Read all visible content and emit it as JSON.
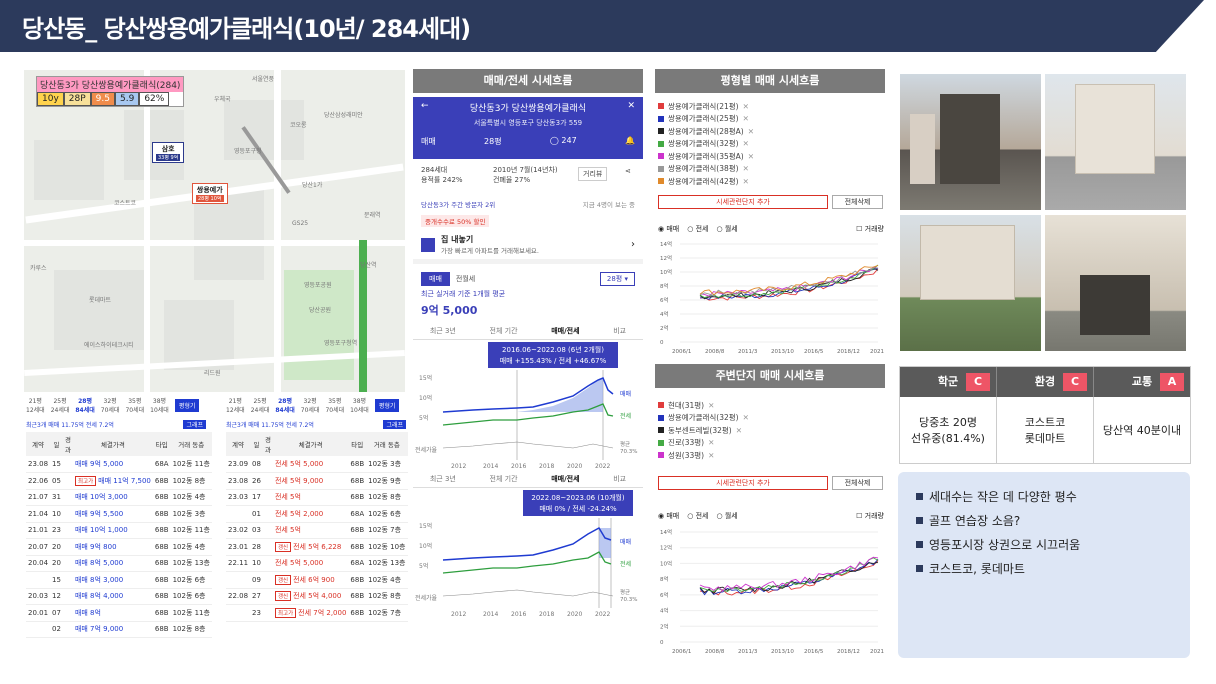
{
  "title": "당산동_ 당산쌍용예가클래식(10년/ 284세대)",
  "map": {
    "badge_title": "당산동3가 당산쌍용예가클래식(284)",
    "badge_cells": [
      "10y",
      "28P",
      "9.5",
      "5.9",
      "62%"
    ],
    "markers": [
      {
        "title": "삼호",
        "sub": "33평 9억"
      },
      {
        "title": "쌍용예가",
        "sub": "28평 10억"
      }
    ],
    "labels": [
      "서울연풍",
      "우체국",
      "당산삼성래미안",
      "코오롱",
      "당산1가",
      "문래역",
      "코스트코",
      "롯데마트",
      "영등포구청",
      "영등포구청역",
      "GS25",
      "카루스",
      "당산공원",
      "리드원",
      "에이스하이테크시티",
      "영등포공원",
      "당산역"
    ]
  },
  "tables": {
    "tabs_a": [
      "21평",
      "25평",
      "28평",
      "32평",
      "35평",
      "38평"
    ],
    "tabs_a_sub": [
      "12세대",
      "24세대",
      "84세대",
      "70세대",
      "70세대",
      "10세대"
    ],
    "tabs_b_sub": [
      "12세대",
      "24세대",
      "84세대",
      "70세대",
      "70세대",
      "10세대"
    ],
    "graph_btn": "평형기",
    "summary": "최근3개 매매 11.75억  전세 7.2억",
    "small_btn": "그래프",
    "headers": [
      "계약",
      "일",
      "경과",
      "체결가격",
      "타입",
      "거래 동층"
    ],
    "left_rows": [
      {
        "d": "23.08",
        "day": "15",
        "price": "매매 9억 5,000",
        "type": "68A",
        "floor": "102동 11층"
      },
      {
        "d": "22.06",
        "day": "05",
        "price": "매매 11억 7,500",
        "type": "68B",
        "floor": "102동 8층",
        "tag": "최고가"
      },
      {
        "d": "21.07",
        "day": "31",
        "price": "매매 10억 3,000",
        "type": "68B",
        "floor": "102동 4층"
      },
      {
        "d": "21.04",
        "day": "10",
        "price": "매매 9억 5,500",
        "type": "68B",
        "floor": "102동 3층"
      },
      {
        "d": "21.01",
        "day": "23",
        "price": "매매 10억 1,000",
        "type": "68B",
        "floor": "102동 11층"
      },
      {
        "d": "20.07",
        "day": "20",
        "price": "매매 9억 800",
        "type": "68B",
        "floor": "102동 4층"
      },
      {
        "d": "20.04",
        "day": "20",
        "price": "매매 8억 5,000",
        "type": "68B",
        "floor": "102동 13층"
      },
      {
        "d": "",
        "day": "15",
        "price": "매매 8억 3,000",
        "type": "68B",
        "floor": "102동 6층"
      },
      {
        "d": "20.03",
        "day": "12",
        "price": "매매 8억 4,000",
        "type": "68B",
        "floor": "102동 6층"
      },
      {
        "d": "20.01",
        "day": "07",
        "price": "매매 8억",
        "type": "68B",
        "floor": "102동 11층"
      },
      {
        "d": "",
        "day": "02",
        "price": "매매 7억 9,000",
        "type": "68B",
        "floor": "102동 8층"
      }
    ],
    "right_rows": [
      {
        "d": "23.09",
        "day": "08",
        "price": "전세 5억 5,000",
        "type": "68B",
        "floor": "102동 3층"
      },
      {
        "d": "23.08",
        "day": "26",
        "price": "전세 5억 9,000",
        "type": "68B",
        "floor": "102동 9층"
      },
      {
        "d": "23.03",
        "day": "17",
        "price": "전세 5억",
        "type": "68B",
        "floor": "102동 8층"
      },
      {
        "d": "",
        "day": "01",
        "price": "전세 5억 2,000",
        "type": "68A",
        "floor": "102동 6층"
      },
      {
        "d": "23.02",
        "day": "03",
        "price": "전세 5억",
        "type": "68B",
        "floor": "102동 7층"
      },
      {
        "d": "23.01",
        "day": "28",
        "price": "전세 5억 6,228",
        "type": "68B",
        "floor": "102동 10층",
        "tag": "갱신"
      },
      {
        "d": "22.11",
        "day": "10",
        "price": "전세 5억 5,000",
        "type": "68A",
        "floor": "102동 13층"
      },
      {
        "d": "",
        "day": "09",
        "price": "전세 6억 900",
        "type": "68B",
        "floor": "102동 4층",
        "tag": "갱신"
      },
      {
        "d": "22.08",
        "day": "27",
        "price": "전세 5억 4,000",
        "type": "68B",
        "floor": "102동 8층",
        "tag": "갱신"
      },
      {
        "d": "",
        "day": "23",
        "price": "전세 7억 2,000",
        "type": "68B",
        "floor": "102동 7층",
        "tag": "최고가"
      }
    ]
  },
  "trend": {
    "header": "매매/전세 시세흐름",
    "app_title": "당산동3가 당산쌍용예가클래식",
    "address": "서울특별시 영등포구 당산동3가 559",
    "deal_type": "매매",
    "size": "28평",
    "comment_count": "247",
    "units": "284세대",
    "ratio": "용적률 242%",
    "built": "2010년 7월(14년차)",
    "coverage": "건폐율 27%",
    "street_view": "거리뷰",
    "visitors": "당산동3가 주간 방문자 2위",
    "now_viewing": "지금 4명이 보는 중",
    "promo": "중개수수료 50% 할인",
    "sell_title": "집 내놓기",
    "sell_sub": "가장 빠르게 아파트를 거래해보세요.",
    "tab_sale": "매매",
    "tab_rent": "전월세",
    "size_select": "28평",
    "avg_label": "최근 실거래 기준 1개월 평균",
    "avg_price": "9억 5,000",
    "period_tabs": [
      "최근 3년",
      "전체 기간",
      "매매/전세",
      "비교"
    ],
    "chart1_tooltip": [
      "2016.06~2022.08 (6년 2개월)",
      "매매 +155.43%  /  전세 +46.67%"
    ],
    "chart2_tooltip": [
      "2022.08~2023.06 (10개월)",
      "매매 0%  /  전세 -24.24%"
    ],
    "y_ticks": [
      "15억",
      "10억",
      "5억"
    ],
    "x_ticks": [
      "2012",
      "2014",
      "2016",
      "2018",
      "2020",
      "2022"
    ],
    "vol_label": "전세가율",
    "line_labels": [
      "매매",
      "전세"
    ],
    "ratio_label": [
      "평균",
      "70.3%"
    ]
  },
  "size_chart": {
    "header": "평형별 매매 시세흐름",
    "series": [
      {
        "name": "쌍용예가클래식(21평)",
        "color": "#e03c3c"
      },
      {
        "name": "쌍용예가클래식(25평)",
        "color": "#2233bb"
      },
      {
        "name": "쌍용예가클래식(28평A)",
        "color": "#222222"
      },
      {
        "name": "쌍용예가클래식(32평)",
        "color": "#44aa44"
      },
      {
        "name": "쌍용예가클래식(35평A)",
        "color": "#cc33cc"
      },
      {
        "name": "쌍용예가클래식(38평)",
        "color": "#999999"
      },
      {
        "name": "쌍용예가클래식(42평)",
        "color": "#e08a2c"
      }
    ],
    "add_btn": "시세관련단지 추가",
    "del_btn": "전체삭제",
    "radios": [
      "매매",
      "전세",
      "월세"
    ],
    "volume": "거래량",
    "y_ticks": [
      "14억",
      "12억",
      "10억",
      "8억",
      "6억",
      "4억",
      "2억",
      "0"
    ],
    "x_ticks": [
      "2006/1",
      "2008/8",
      "2011/3",
      "2013/10",
      "2016/5",
      "2018/12",
      "2021/7"
    ]
  },
  "nearby_chart": {
    "header": "주변단지 매매 시세흐름",
    "series": [
      {
        "name": "현대(31평)",
        "color": "#e03c3c"
      },
      {
        "name": "쌍용예가클래식(32평)",
        "color": "#2233bb"
      },
      {
        "name": "동부센트레빌(32평)",
        "color": "#222222"
      },
      {
        "name": "진로(33평)",
        "color": "#44aa44"
      },
      {
        "name": "성원(33평)",
        "color": "#cc33cc"
      }
    ],
    "add_btn": "시세관련단지 추가",
    "del_btn": "전체삭제",
    "radios": [
      "매매",
      "전세",
      "월세"
    ],
    "volume": "거래량",
    "y_ticks": [
      "14억",
      "12억",
      "10억",
      "8억",
      "6억",
      "4억",
      "2억",
      "0"
    ],
    "x_ticks": [
      "2006/1",
      "2008/8",
      "2011/3",
      "2013/10",
      "2016/5",
      "2018/12",
      "2021/7"
    ]
  },
  "grades": {
    "headers": [
      "학군",
      "환경",
      "교통"
    ],
    "scores": [
      "C",
      "C",
      "A"
    ],
    "values": [
      [
        "당중초 20명",
        "선유중(81.4%)"
      ],
      [
        "코스트코",
        "롯데마트"
      ],
      [
        "당산역 40분이내"
      ]
    ]
  },
  "notes": [
    "세대수는 작은 데 다양한 평수",
    "골프 연습장 소음?",
    "영등포시장 상권으로 시끄러움",
    "코스트코, 롯데마트"
  ],
  "colors": {
    "header": "#2c3a5c",
    "sell": "#1f3bd1",
    "jeonse": "#2e9e3e",
    "grade": "#ee5566"
  }
}
